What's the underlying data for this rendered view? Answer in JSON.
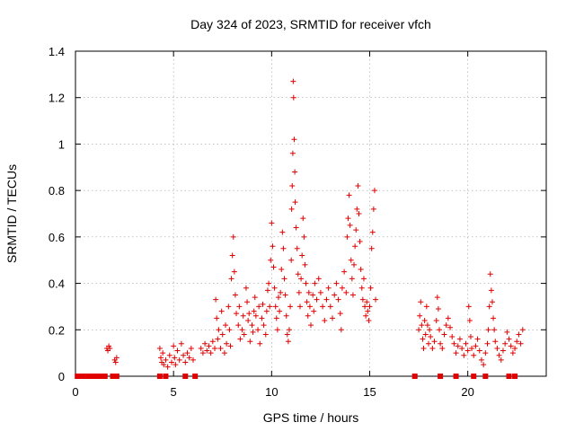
{
  "chart_data": {
    "type": "scatter",
    "title": "Day 324 of 2023, SRMTID for receiver vfch",
    "xlabel": "GPS time / hours",
    "ylabel": "SRMTID / TECUs",
    "xlim": [
      0,
      24
    ],
    "ylim": [
      0,
      1.4
    ],
    "x_ticks": [
      0,
      5,
      10,
      15,
      20
    ],
    "y_ticks": [
      0,
      0.2,
      0.4,
      0.6,
      0.8,
      1.0,
      1.2,
      1.4
    ],
    "x_tick_labels": [
      "0",
      "5",
      "10",
      "15",
      "20"
    ],
    "y_tick_labels": [
      "0",
      "0.2",
      "0.4",
      "0.6",
      "0.8",
      "1",
      "1.2",
      "1.4"
    ],
    "grid": true,
    "marker": "+",
    "color": "#e00000",
    "series": [
      {
        "name": "SRMTID",
        "points": [
          [
            1.6,
            0.12
          ],
          [
            1.65,
            0.11
          ],
          [
            1.7,
            0.13
          ],
          [
            1.75,
            0.12
          ],
          [
            2.0,
            0.07
          ],
          [
            2.05,
            0.06
          ],
          [
            2.1,
            0.08
          ],
          [
            4.3,
            0.12
          ],
          [
            4.35,
            0.08
          ],
          [
            4.4,
            0.06
          ],
          [
            4.45,
            0.1
          ],
          [
            4.5,
            0.05
          ],
          [
            4.6,
            0.07
          ],
          [
            4.7,
            0.04
          ],
          [
            4.8,
            0.09
          ],
          [
            4.9,
            0.06
          ],
          [
            5.0,
            0.13
          ],
          [
            5.05,
            0.08
          ],
          [
            5.1,
            0.05
          ],
          [
            5.2,
            0.11
          ],
          [
            5.3,
            0.07
          ],
          [
            5.4,
            0.14
          ],
          [
            5.5,
            0.09
          ],
          [
            5.6,
            0.06
          ],
          [
            5.7,
            0.1
          ],
          [
            5.8,
            0.08
          ],
          [
            5.9,
            0.12
          ],
          [
            6.0,
            0.07
          ],
          [
            6.4,
            0.12
          ],
          [
            6.5,
            0.1
          ],
          [
            6.6,
            0.14
          ],
          [
            6.7,
            0.11
          ],
          [
            6.8,
            0.13
          ],
          [
            6.9,
            0.1
          ],
          [
            7.0,
            0.15
          ],
          [
            7.1,
            0.12
          ],
          [
            7.15,
            0.33
          ],
          [
            7.2,
            0.25
          ],
          [
            7.25,
            0.16
          ],
          [
            7.3,
            0.2
          ],
          [
            7.4,
            0.12
          ],
          [
            7.45,
            0.28
          ],
          [
            7.5,
            0.18
          ],
          [
            7.6,
            0.1
          ],
          [
            7.65,
            0.22
          ],
          [
            7.7,
            0.14
          ],
          [
            7.8,
            0.3
          ],
          [
            7.85,
            0.2
          ],
          [
            7.9,
            0.13
          ],
          [
            7.95,
            0.42
          ],
          [
            8.0,
            0.52
          ],
          [
            8.05,
            0.6
          ],
          [
            8.1,
            0.45
          ],
          [
            8.15,
            0.35
          ],
          [
            8.2,
            0.27
          ],
          [
            8.3,
            0.22
          ],
          [
            8.35,
            0.3
          ],
          [
            8.4,
            0.16
          ],
          [
            8.5,
            0.2
          ],
          [
            8.55,
            0.26
          ],
          [
            8.6,
            0.18
          ],
          [
            8.7,
            0.38
          ],
          [
            8.75,
            0.32
          ],
          [
            8.8,
            0.24
          ],
          [
            8.85,
            0.27
          ],
          [
            8.9,
            0.15
          ],
          [
            9.0,
            0.22
          ],
          [
            9.05,
            0.19
          ],
          [
            9.1,
            0.28
          ],
          [
            9.15,
            0.34
          ],
          [
            9.2,
            0.26
          ],
          [
            9.3,
            0.2
          ],
          [
            9.35,
            0.3
          ],
          [
            9.4,
            0.14
          ],
          [
            9.5,
            0.25
          ],
          [
            9.55,
            0.31
          ],
          [
            9.6,
            0.22
          ],
          [
            9.7,
            0.18
          ],
          [
            9.75,
            0.28
          ],
          [
            9.8,
            0.37
          ],
          [
            9.85,
            0.4
          ],
          [
            9.9,
            0.3
          ],
          [
            9.95,
            0.5
          ],
          [
            10.0,
            0.66
          ],
          [
            10.05,
            0.56
          ],
          [
            10.1,
            0.47
          ],
          [
            10.15,
            0.38
          ],
          [
            10.2,
            0.3
          ],
          [
            10.25,
            0.25
          ],
          [
            10.3,
            0.2
          ],
          [
            10.35,
            0.34
          ],
          [
            10.4,
            0.28
          ],
          [
            10.45,
            0.36
          ],
          [
            10.5,
            0.46
          ],
          [
            10.55,
            0.62
          ],
          [
            10.6,
            0.55
          ],
          [
            10.65,
            0.42
          ],
          [
            10.7,
            0.35
          ],
          [
            10.75,
            0.26
          ],
          [
            10.8,
            0.18
          ],
          [
            10.85,
            0.15
          ],
          [
            10.9,
            0.2
          ],
          [
            10.95,
            0.3
          ],
          [
            11.0,
            0.5
          ],
          [
            11.02,
            0.72
          ],
          [
            11.05,
            0.82
          ],
          [
            11.08,
            0.96
          ],
          [
            11.1,
            1.27
          ],
          [
            11.12,
            1.2
          ],
          [
            11.15,
            1.02
          ],
          [
            11.18,
            0.88
          ],
          [
            11.2,
            0.75
          ],
          [
            11.25,
            0.64
          ],
          [
            11.3,
            0.55
          ],
          [
            11.35,
            0.44
          ],
          [
            11.4,
            0.36
          ],
          [
            11.45,
            0.3
          ],
          [
            11.5,
            0.42
          ],
          [
            11.55,
            0.52
          ],
          [
            11.6,
            0.68
          ],
          [
            11.65,
            0.6
          ],
          [
            11.7,
            0.48
          ],
          [
            11.75,
            0.4
          ],
          [
            11.8,
            0.32
          ],
          [
            11.85,
            0.26
          ],
          [
            11.9,
            0.36
          ],
          [
            11.95,
            0.3
          ],
          [
            12.0,
            0.22
          ],
          [
            12.1,
            0.35
          ],
          [
            12.15,
            0.28
          ],
          [
            12.2,
            0.4
          ],
          [
            12.3,
            0.33
          ],
          [
            12.4,
            0.42
          ],
          [
            12.5,
            0.36
          ],
          [
            12.6,
            0.3
          ],
          [
            12.7,
            0.24
          ],
          [
            12.8,
            0.33
          ],
          [
            12.9,
            0.38
          ],
          [
            13.0,
            0.3
          ],
          [
            13.1,
            0.25
          ],
          [
            13.2,
            0.35
          ],
          [
            13.3,
            0.4
          ],
          [
            13.4,
            0.33
          ],
          [
            13.5,
            0.27
          ],
          [
            13.55,
            0.2
          ],
          [
            13.6,
            0.38
          ],
          [
            13.7,
            0.45
          ],
          [
            13.8,
            0.36
          ],
          [
            13.85,
            0.6
          ],
          [
            13.9,
            0.68
          ],
          [
            13.95,
            0.78
          ],
          [
            14.0,
            0.65
          ],
          [
            14.05,
            0.5
          ],
          [
            14.1,
            0.42
          ],
          [
            14.15,
            0.35
          ],
          [
            14.2,
            0.48
          ],
          [
            14.25,
            0.56
          ],
          [
            14.3,
            0.63
          ],
          [
            14.35,
            0.72
          ],
          [
            14.4,
            0.82
          ],
          [
            14.45,
            0.7
          ],
          [
            14.5,
            0.58
          ],
          [
            14.55,
            0.46
          ],
          [
            14.6,
            0.38
          ],
          [
            14.65,
            0.33
          ],
          [
            14.7,
            0.42
          ],
          [
            14.75,
            0.3
          ],
          [
            14.8,
            0.26
          ],
          [
            14.85,
            0.32
          ],
          [
            14.9,
            0.28
          ],
          [
            14.95,
            0.24
          ],
          [
            15.0,
            0.3
          ],
          [
            15.05,
            0.38
          ],
          [
            15.1,
            0.55
          ],
          [
            15.15,
            0.62
          ],
          [
            15.2,
            0.72
          ],
          [
            15.25,
            0.8
          ],
          [
            15.3,
            0.33
          ],
          [
            17.5,
            0.2
          ],
          [
            17.55,
            0.26
          ],
          [
            17.6,
            0.32
          ],
          [
            17.65,
            0.22
          ],
          [
            17.7,
            0.16
          ],
          [
            17.75,
            0.12
          ],
          [
            17.8,
            0.24
          ],
          [
            17.85,
            0.18
          ],
          [
            17.9,
            0.3
          ],
          [
            17.95,
            0.22
          ],
          [
            18.0,
            0.14
          ],
          [
            18.05,
            0.2
          ],
          [
            18.1,
            0.17
          ],
          [
            18.2,
            0.12
          ],
          [
            18.3,
            0.15
          ],
          [
            18.4,
            0.24
          ],
          [
            18.45,
            0.34
          ],
          [
            18.5,
            0.29
          ],
          [
            18.55,
            0.2
          ],
          [
            18.6,
            0.14
          ],
          [
            18.7,
            0.12
          ],
          [
            18.8,
            0.18
          ],
          [
            18.9,
            0.22
          ],
          [
            19.0,
            0.25
          ],
          [
            19.1,
            0.21
          ],
          [
            19.2,
            0.17
          ],
          [
            19.3,
            0.14
          ],
          [
            19.4,
            0.1
          ],
          [
            19.5,
            0.13
          ],
          [
            19.6,
            0.16
          ],
          [
            19.7,
            0.12
          ],
          [
            19.8,
            0.09
          ],
          [
            19.9,
            0.14
          ],
          [
            20.0,
            0.11
          ],
          [
            20.05,
            0.3
          ],
          [
            20.1,
            0.24
          ],
          [
            20.15,
            0.17
          ],
          [
            20.2,
            0.12
          ],
          [
            20.3,
            0.09
          ],
          [
            20.4,
            0.13
          ],
          [
            20.5,
            0.16
          ],
          [
            20.6,
            0.11
          ],
          [
            20.7,
            0.07
          ],
          [
            20.8,
            0.05
          ],
          [
            20.9,
            0.1
          ],
          [
            21.0,
            0.14
          ],
          [
            21.05,
            0.2
          ],
          [
            21.1,
            0.3
          ],
          [
            21.15,
            0.44
          ],
          [
            21.2,
            0.37
          ],
          [
            21.25,
            0.32
          ],
          [
            21.3,
            0.25
          ],
          [
            21.35,
            0.2
          ],
          [
            21.4,
            0.15
          ],
          [
            21.5,
            0.12
          ],
          [
            21.6,
            0.09
          ],
          [
            21.7,
            0.07
          ],
          [
            21.8,
            0.11
          ],
          [
            21.9,
            0.14
          ],
          [
            22.0,
            0.19
          ],
          [
            22.1,
            0.16
          ],
          [
            22.2,
            0.13
          ],
          [
            22.3,
            0.1
          ],
          [
            22.4,
            0.12
          ],
          [
            22.5,
            0.15
          ],
          [
            22.6,
            0.18
          ],
          [
            22.7,
            0.14
          ],
          [
            22.8,
            0.2
          ]
        ]
      }
    ],
    "zero_markers_x": [
      0.1,
      0.3,
      0.5,
      0.7,
      0.9,
      1.1,
      1.3,
      1.5,
      1.9,
      2.1,
      4.3,
      4.6,
      5.6,
      6.1,
      17.3,
      18.6,
      19.4,
      20.3,
      20.9,
      22.1,
      22.4
    ]
  }
}
